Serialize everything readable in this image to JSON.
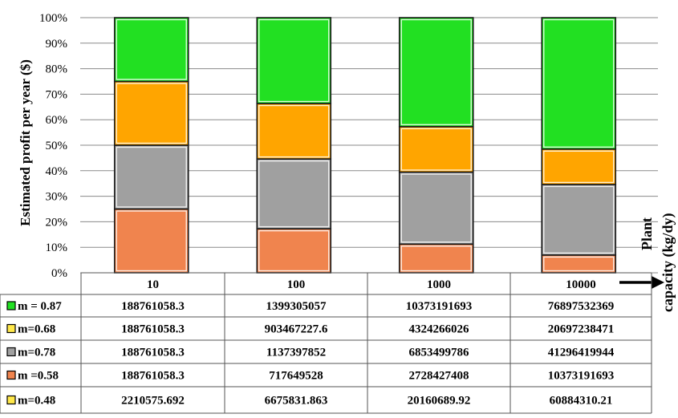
{
  "chart_data": {
    "type": "bar",
    "stacked": "percent",
    "ylabel": "Estimated profit per year ($)",
    "xlabel": "Plant capacity (kg/dy)",
    "y_ticks": [
      "0%",
      "10%",
      "20%",
      "30%",
      "40%",
      "50%",
      "60%",
      "70%",
      "80%",
      "90%",
      "100%"
    ],
    "ylim": [
      0,
      100
    ],
    "grid": true,
    "categories": [
      "10",
      "100",
      "1000",
      "10000"
    ],
    "series": [
      {
        "name": "m =0.58",
        "color": "#F0844E",
        "values": [
          188761058.3,
          717649528,
          2728427408,
          10373191693
        ]
      },
      {
        "name": "m=0.78",
        "color": "#A0A0A0",
        "values": [
          188761058.3,
          1137397852,
          6853499786,
          41296419944
        ]
      },
      {
        "name": "m=0.68",
        "color": "#FFA500",
        "values": [
          188761058.3,
          903467227.6,
          4324266026,
          20697238471
        ]
      },
      {
        "name": "m = 0.87",
        "color": "#22E022",
        "values": [
          188761058.3,
          1399305057,
          10373191693,
          76897532369
        ]
      }
    ],
    "table": {
      "header": [
        "10",
        "100",
        "1000",
        "10000"
      ],
      "rows": [
        {
          "label": "m = 0.87",
          "color": "#22E022",
          "cells": [
            "188761058.3",
            "1399305057",
            "10373191693",
            "76897532369"
          ]
        },
        {
          "label": "m=0.68",
          "color": "#FFE84A",
          "cells": [
            "188761058.3",
            "903467227.6",
            "4324266026",
            "20697238471"
          ]
        },
        {
          "label": "m=0.78",
          "color": "#A0A0A0",
          "cells": [
            "188761058.3",
            "1137397852",
            "6853499786",
            "41296419944"
          ]
        },
        {
          "label": "m =0.58",
          "color": "#F0844E",
          "cells": [
            "188761058.3",
            "717649528",
            "2728427408",
            "10373191693"
          ]
        },
        {
          "label": "m=0.48",
          "color": "#FFE84A",
          "cells": [
            "2210575.692",
            "6675831.863",
            "20160689.92",
            "60884310.21"
          ]
        }
      ]
    }
  }
}
